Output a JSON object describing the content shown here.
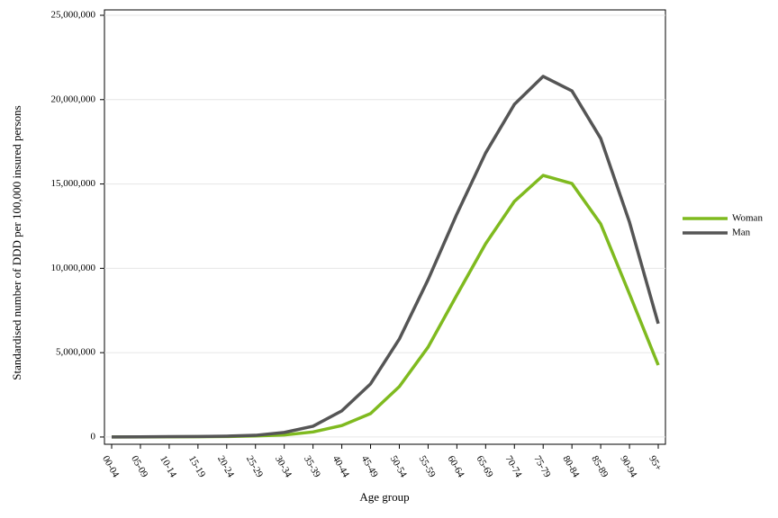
{
  "chart_data": {
    "type": "line",
    "x_label": "Age group",
    "y_label": "Standardised number of DDD per 100,000 insured persons",
    "categories": [
      "00-04",
      "05-09",
      "10-14",
      "15-19",
      "20-24",
      "25-29",
      "30-34",
      "35-39",
      "40-44",
      "45-49",
      "50-54",
      "55-59",
      "60-64",
      "65-69",
      "70-74",
      "75-79",
      "80-84",
      "85-89",
      "90-94",
      "95+"
    ],
    "series": [
      {
        "name": "Woman",
        "color": "#7fba1f",
        "values": [
          0,
          0,
          10000,
          15000,
          30000,
          60000,
          120000,
          300000,
          680000,
          1390000,
          2990000,
          5330000,
          8420000,
          11460000,
          13970000,
          15510000,
          15030000,
          12630000,
          8480000,
          4260000
        ]
      },
      {
        "name": "Man",
        "color": "#555555",
        "values": [
          0,
          10000,
          20000,
          30000,
          50000,
          100000,
          270000,
          640000,
          1550000,
          3150000,
          5810000,
          9330000,
          13220000,
          16840000,
          19720000,
          21380000,
          20520000,
          17700000,
          12740000,
          6720000
        ]
      }
    ],
    "ylim": [
      -430000,
      25320000
    ],
    "yticks": [
      0,
      {
        "value": 5000000,
        "label": "5,000,000"
      },
      {
        "value": 10000000,
        "label": "10,000,000"
      },
      {
        "value": 15000000,
        "label": "15,000,000"
      },
      {
        "value": 20000000,
        "label": "20,000,000"
      },
      {
        "value": 25000000,
        "label": "25,000,000"
      }
    ],
    "grid": true,
    "legend": "right"
  }
}
